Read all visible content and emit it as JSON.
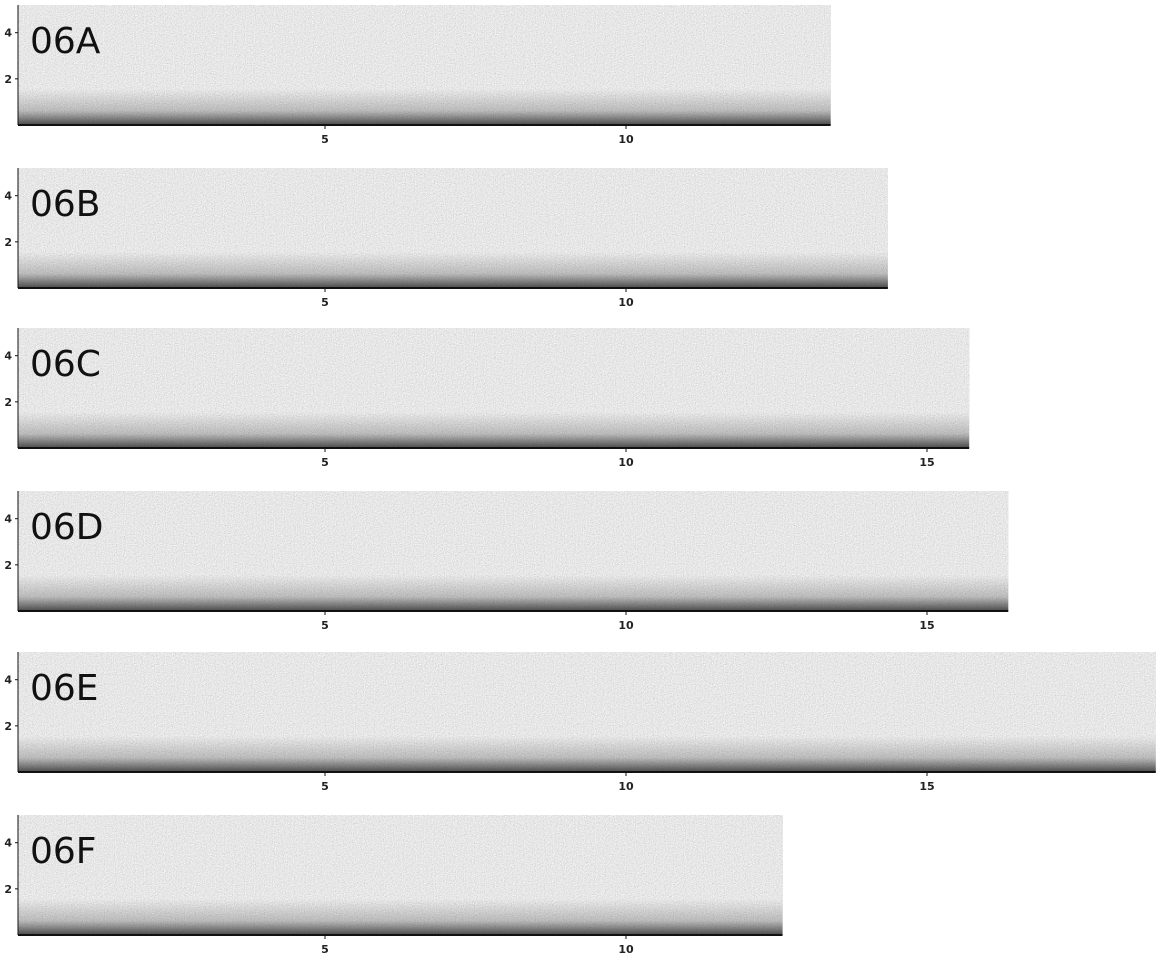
{
  "panels": [
    {
      "label": "06A",
      "xlim": [
        0,
        13.4
      ],
      "ylim": [
        0,
        5.2
      ],
      "xticks": [
        5,
        10
      ],
      "yticks": [
        2,
        4
      ]
    },
    {
      "label": "06B",
      "xlim": [
        0,
        14.35
      ],
      "ylim": [
        0,
        5.2
      ],
      "xticks": [
        5,
        10
      ],
      "yticks": [
        2,
        4
      ]
    },
    {
      "label": "06C",
      "xlim": [
        0,
        15.7
      ],
      "ylim": [
        0,
        5.2
      ],
      "xticks": [
        5,
        10,
        15
      ],
      "yticks": [
        2,
        4
      ]
    },
    {
      "label": "06D",
      "xlim": [
        0,
        16.35
      ],
      "ylim": [
        0,
        5.2
      ],
      "xticks": [
        5,
        10,
        15
      ],
      "yticks": [
        2,
        4
      ]
    },
    {
      "label": "06E",
      "xlim": [
        0,
        18.8
      ],
      "ylim": [
        0,
        5.2
      ],
      "xticks": [
        5,
        10,
        15
      ],
      "yticks": [
        2,
        4
      ]
    },
    {
      "label": "06F",
      "xlim": [
        0,
        12.6
      ],
      "ylim": [
        0,
        5.2
      ],
      "xticks": [
        5,
        10
      ],
      "yticks": [
        2,
        4
      ]
    }
  ]
}
